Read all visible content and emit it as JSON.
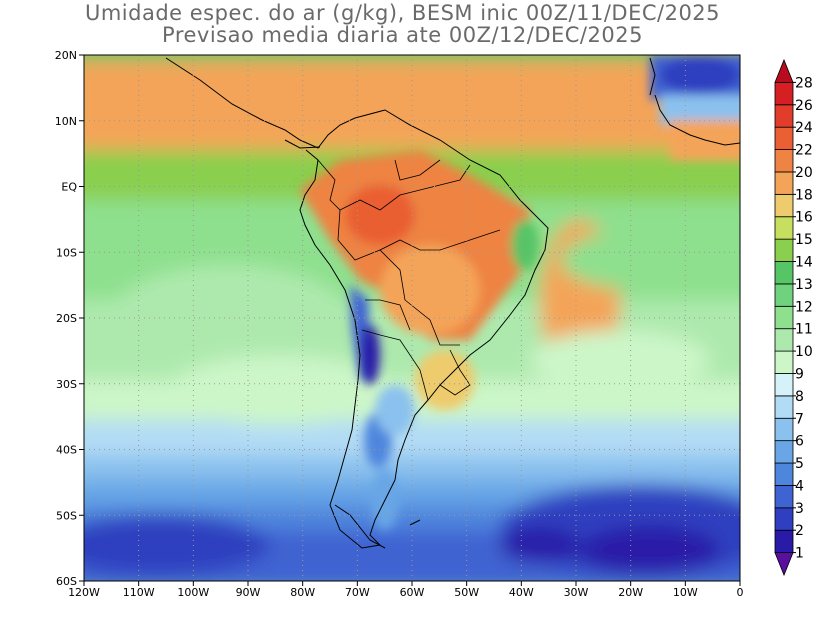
{
  "title": {
    "line1": "Umidade espec. do ar (g/kg), BESM inic 00Z/11/DEC/2025",
    "line2": "Previsao media diaria ate 00Z/12/DEC/2025"
  },
  "axes": {
    "lon_labels": [
      "120W",
      "110W",
      "100W",
      "90W",
      "80W",
      "70W",
      "60W",
      "50W",
      "40W",
      "30W",
      "20W",
      "10W",
      "0"
    ],
    "lat_labels": [
      "20N",
      "10N",
      "EQ",
      "10S",
      "20S",
      "30S",
      "40S",
      "50S",
      "60S"
    ],
    "lon_range": [
      -120,
      0
    ],
    "lat_range": [
      -60,
      20
    ],
    "grid": "dotted"
  },
  "colorbar": {
    "levels": [
      "1",
      "2",
      "3",
      "4",
      "5",
      "6",
      "7",
      "8",
      "9",
      "10",
      "11",
      "12",
      "13",
      "14",
      "15",
      "16",
      "18",
      "20",
      "22",
      "24",
      "26",
      "28"
    ],
    "colors": [
      "#5a0fa0",
      "#2a1aa8",
      "#2f3fc0",
      "#3f63d2",
      "#4f86dd",
      "#68a6e6",
      "#8bc1ee",
      "#b2dcf5",
      "#d4f2f7",
      "#ccf6c8",
      "#ade9ad",
      "#8ee08e",
      "#6fd27f",
      "#56c566",
      "#8acf4d",
      "#c6df5f",
      "#eecb6c",
      "#f4a458",
      "#ee8343",
      "#ea5f33",
      "#e23c2a",
      "#d51f22",
      "#b80b1e"
    ],
    "orientation": "vertical",
    "placement": "right"
  }
}
